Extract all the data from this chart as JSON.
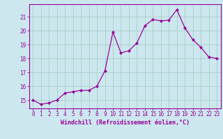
{
  "x": [
    0,
    1,
    2,
    3,
    4,
    5,
    6,
    7,
    8,
    9,
    10,
    11,
    12,
    13,
    14,
    15,
    16,
    17,
    18,
    19,
    20,
    21,
    22,
    23
  ],
  "y": [
    15.0,
    14.7,
    14.8,
    15.0,
    15.5,
    15.6,
    15.7,
    15.7,
    16.0,
    17.1,
    19.9,
    18.4,
    18.55,
    19.1,
    20.35,
    20.8,
    20.7,
    20.75,
    21.5,
    20.2,
    19.35,
    18.8,
    18.1,
    18.0
  ],
  "line_color": "#990099",
  "marker": "D",
  "bg_color": "#cce8ee",
  "grid_color": "#aacccc",
  "ylabel_ticks": [
    15,
    16,
    17,
    18,
    19,
    20,
    21
  ],
  "xlabel": "Windchill (Refroidissement éolien,°C)",
  "xlim": [
    -0.5,
    23.5
  ],
  "ylim": [
    14.4,
    21.9
  ],
  "label_fontsize": 6,
  "tick_fontsize": 5.5
}
